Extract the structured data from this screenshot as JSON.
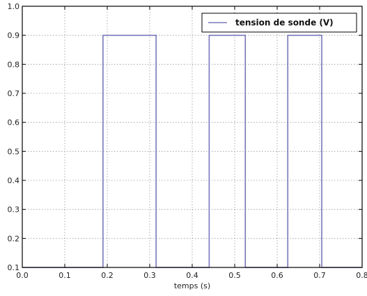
{
  "chart_data": {
    "type": "line",
    "xlabel": "temps (s)",
    "ylabel": "",
    "title": "",
    "xlim": [
      0.0,
      0.8
    ],
    "ylim": [
      0.1,
      1.0
    ],
    "xticks": [
      "0.0",
      "0.1",
      "0.2",
      "0.3",
      "0.4",
      "0.5",
      "0.6",
      "0.7",
      "0.8"
    ],
    "yticks": [
      "0.1",
      "0.2",
      "0.3",
      "0.4",
      "0.5",
      "0.6",
      "0.7",
      "0.8",
      "0.9",
      "1.0"
    ],
    "grid": true,
    "legend_position": "top-right",
    "series": [
      {
        "name": "tension de sonde (V)",
        "color": "#7777bb",
        "x": [
          0.0,
          0.19,
          0.19,
          0.315,
          0.315,
          0.44,
          0.44,
          0.525,
          0.525,
          0.625,
          0.625,
          0.705,
          0.705,
          0.8
        ],
        "y": [
          0.1,
          0.1,
          0.9,
          0.9,
          0.1,
          0.1,
          0.9,
          0.9,
          0.1,
          0.1,
          0.9,
          0.9,
          0.1,
          0.1
        ]
      }
    ]
  }
}
